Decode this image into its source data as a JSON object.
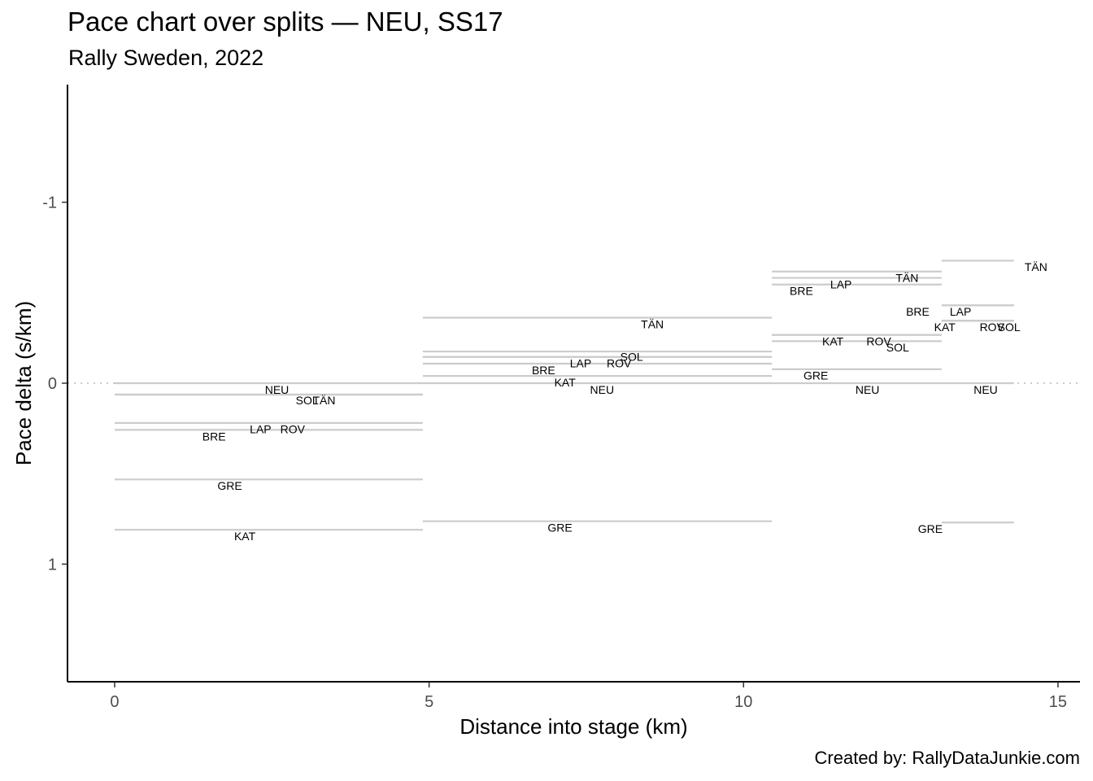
{
  "chart_data": {
    "type": "line",
    "title": "Pace chart over splits — NEU, SS17",
    "subtitle": "Rally Sweden, 2022",
    "caption": "Created by: RallyDataJunkie.com",
    "xlabel": "Distance into stage (km)",
    "ylabel": "Pace delta (s/km)",
    "xlim": [
      -0.75,
      15.35
    ],
    "ylim": [
      1.65,
      -1.65
    ],
    "y_reversed": true,
    "xticks": [
      0,
      5,
      10,
      15
    ],
    "yticks": [
      -1,
      0,
      1
    ],
    "ytick_labels": [
      "-1",
      "0",
      "1"
    ],
    "grid": false,
    "reference_line": {
      "y": 0,
      "style": "dotted"
    },
    "segments": [
      {
        "x0": 0,
        "x1": 4.9,
        "y": 0.0,
        "label": "NEU",
        "label_x": 2.58,
        "label_y": 0.035
      },
      {
        "x0": 0,
        "x1": 4.9,
        "y": 0.063,
        "label": "SOL",
        "label_x": 3.06,
        "label_y": 0.095
      },
      {
        "x0": 0,
        "x1": 4.9,
        "y": 0.063,
        "label": "TÄN",
        "label_x": 3.33,
        "label_y": 0.095
      },
      {
        "x0": 0,
        "x1": 4.9,
        "y": 0.22,
        "label": "ROV",
        "label_x": 2.83,
        "label_y": 0.255
      },
      {
        "x0": 0,
        "x1": 4.9,
        "y": 0.22,
        "label": "LAP",
        "label_x": 2.32,
        "label_y": 0.255
      },
      {
        "x0": 0,
        "x1": 4.9,
        "y": 0.258,
        "label": "BRE",
        "label_x": 1.58,
        "label_y": 0.295
      },
      {
        "x0": 0,
        "x1": 4.9,
        "y": 0.532,
        "label": "GRE",
        "label_x": 1.83,
        "label_y": 0.567
      },
      {
        "x0": 0,
        "x1": 4.9,
        "y": 0.81,
        "label": "KAT",
        "label_x": 2.07,
        "label_y": 0.845
      },
      {
        "x0": 4.9,
        "x1": 10.45,
        "y": -0.362,
        "label": "TÄN",
        "label_x": 8.55,
        "label_y": -0.327
      },
      {
        "x0": 4.9,
        "x1": 10.45,
        "y": -0.175,
        "label": "SOL",
        "label_x": 8.22,
        "label_y": -0.145
      },
      {
        "x0": 4.9,
        "x1": 10.45,
        "y": -0.145,
        "label": "ROV",
        "label_x": 8.02,
        "label_y": -0.11
      },
      {
        "x0": 4.9,
        "x1": 10.45,
        "y": -0.145,
        "label": "LAP",
        "label_x": 7.41,
        "label_y": -0.11
      },
      {
        "x0": 4.9,
        "x1": 10.45,
        "y": -0.108,
        "label": "BRE",
        "label_x": 6.82,
        "label_y": -0.073
      },
      {
        "x0": 4.9,
        "x1": 10.45,
        "y": -0.04,
        "label": "KAT",
        "label_x": 7.16,
        "label_y": -0.005
      },
      {
        "x0": 4.9,
        "x1": 10.45,
        "y": 0.0,
        "label": "NEU",
        "label_x": 7.75,
        "label_y": 0.035
      },
      {
        "x0": 4.9,
        "x1": 10.45,
        "y": 0.763,
        "label": "GRE",
        "label_x": 7.08,
        "label_y": 0.798
      },
      {
        "x0": 10.45,
        "x1": 13.15,
        "y": -0.617,
        "label": "TÄN",
        "label_x": 12.6,
        "label_y": -0.582
      },
      {
        "x0": 10.45,
        "x1": 13.15,
        "y": -0.582,
        "label": "LAP",
        "label_x": 11.55,
        "label_y": -0.547
      },
      {
        "x0": 10.45,
        "x1": 13.15,
        "y": -0.545,
        "label": "BRE",
        "label_x": 10.92,
        "label_y": -0.51
      },
      {
        "x0": 10.45,
        "x1": 13.15,
        "y": -0.267,
        "label": "KAT",
        "label_x": 11.42,
        "label_y": -0.232
      },
      {
        "x0": 10.45,
        "x1": 13.15,
        "y": -0.267,
        "label": "ROV",
        "label_x": 12.15,
        "label_y": -0.232
      },
      {
        "x0": 10.45,
        "x1": 13.15,
        "y": -0.232,
        "label": "SOL",
        "label_x": 12.45,
        "label_y": -0.197
      },
      {
        "x0": 10.45,
        "x1": 13.15,
        "y": -0.077,
        "label": "GRE",
        "label_x": 11.15,
        "label_y": -0.042
      },
      {
        "x0": 10.45,
        "x1": 13.15,
        "y": 0.0,
        "label": "NEU",
        "label_x": 11.97,
        "label_y": 0.035
      },
      {
        "x0": 13.15,
        "x1": 14.3,
        "y": -0.677,
        "label": "TÄN",
        "label_x": 14.65,
        "label_y": -0.642
      },
      {
        "x0": 13.15,
        "x1": 14.3,
        "y": -0.43,
        "label": "LAP",
        "label_x": 13.45,
        "label_y": -0.395
      },
      {
        "x0": 13.15,
        "x1": 14.3,
        "y": -0.43,
        "label": "BRE",
        "label_x": 12.77,
        "label_y": -0.395
      },
      {
        "x0": 13.15,
        "x1": 14.3,
        "y": -0.345,
        "label": "KAT",
        "label_x": 13.2,
        "label_y": -0.31
      },
      {
        "x0": 13.15,
        "x1": 14.3,
        "y": -0.345,
        "label": "ROV",
        "label_x": 13.95,
        "label_y": -0.31
      },
      {
        "x0": 13.15,
        "x1": 14.3,
        "y": -0.345,
        "label": "SOL",
        "label_x": 14.22,
        "label_y": -0.31
      },
      {
        "x0": 13.15,
        "x1": 14.3,
        "y": 0.0,
        "label": "NEU",
        "label_x": 13.85,
        "label_y": 0.035
      },
      {
        "x0": 13.15,
        "x1": 14.3,
        "y": 0.77,
        "label": "GRE",
        "label_x": 12.97,
        "label_y": 0.805
      }
    ],
    "colors": {
      "segment": "#cccccc",
      "reference": "#cccccc",
      "axis": "#000000",
      "tick_label": "#4d4d4d"
    }
  }
}
